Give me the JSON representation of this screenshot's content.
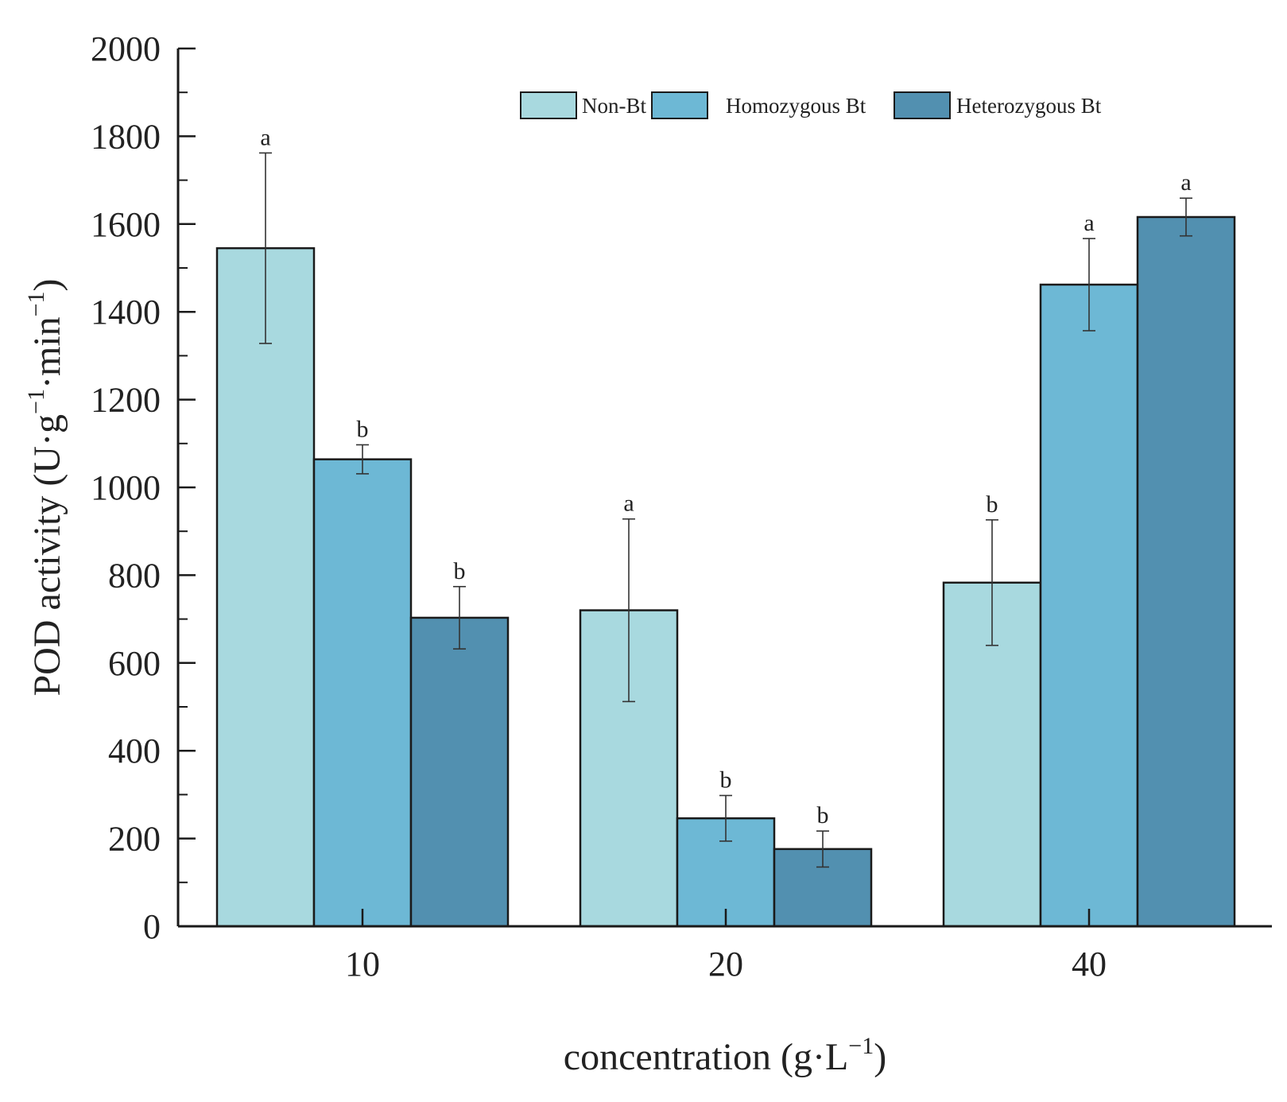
{
  "chart_data": {
    "type": "bar",
    "title": "",
    "xlabel": "concentration (g·L",
    "xlabel_sup": "−1",
    "xlabel_close": ")",
    "ylabel_parts": [
      "POD activity (U·g",
      "−1",
      "·min",
      "−1",
      ")"
    ],
    "categories": [
      "10",
      "20",
      "40"
    ],
    "ylim": [
      0,
      2000
    ],
    "yticks": [
      0,
      200,
      400,
      600,
      800,
      1000,
      1200,
      1400,
      1600,
      1800,
      2000
    ],
    "legend_position": "top-right",
    "grid": false,
    "series": [
      {
        "name": "Non-Bt",
        "color": "#a8d9df",
        "values": [
          1545,
          720,
          783
        ],
        "errors": [
          217,
          208,
          143
        ],
        "letters": [
          "a",
          "a",
          "b"
        ]
      },
      {
        "name": "Homozygous Bt",
        "color": "#6db8d5",
        "values": [
          1064,
          246,
          1462
        ],
        "errors": [
          33,
          52,
          105
        ],
        "letters": [
          "b",
          "b",
          "a"
        ]
      },
      {
        "name": "Heterozygous Bt",
        "color": "#5290b0",
        "values": [
          703,
          176,
          1616
        ],
        "errors": [
          71,
          41,
          43
        ],
        "letters": [
          "b",
          "b",
          "a"
        ]
      }
    ]
  }
}
